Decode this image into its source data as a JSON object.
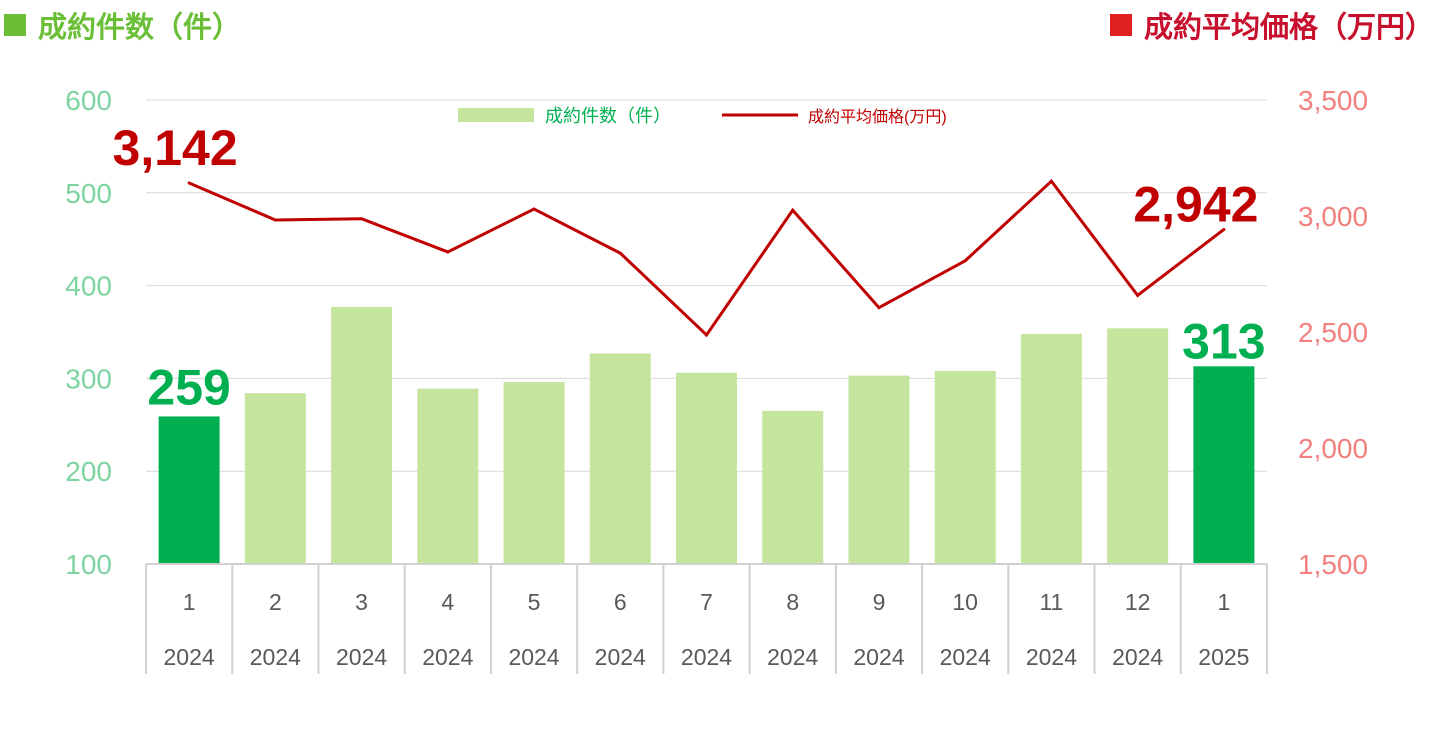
{
  "headers": {
    "left": "成約件数（件）",
    "right": "成約平均価格（万円）",
    "left_color": "#6bbf36",
    "right_color": "#e02020"
  },
  "chart_data": {
    "type": "bar+line",
    "categories": [
      {
        "month": "1",
        "year": "2024"
      },
      {
        "month": "2",
        "year": "2024"
      },
      {
        "month": "3",
        "year": "2024"
      },
      {
        "month": "4",
        "year": "2024"
      },
      {
        "month": "5",
        "year": "2024"
      },
      {
        "month": "6",
        "year": "2024"
      },
      {
        "month": "7",
        "year": "2024"
      },
      {
        "month": "8",
        "year": "2024"
      },
      {
        "month": "9",
        "year": "2024"
      },
      {
        "month": "10",
        "year": "2024"
      },
      {
        "month": "11",
        "year": "2024"
      },
      {
        "month": "12",
        "year": "2024"
      },
      {
        "month": "1",
        "year": "2025"
      }
    ],
    "series": [
      {
        "name": "成約件数（件）",
        "type": "bar",
        "axis": "left",
        "values": [
          259,
          284,
          377,
          289,
          296,
          327,
          306,
          265,
          303,
          308,
          348,
          354,
          313
        ],
        "color": "#c5e49e",
        "highlight_color": "#00b050",
        "highlight_indices": [
          0,
          12
        ]
      },
      {
        "name": "成約平均価格(万円)",
        "type": "line",
        "axis": "right",
        "values": [
          3142,
          2983,
          2988,
          2845,
          3030,
          2840,
          2487,
          3025,
          2605,
          2807,
          3150,
          2658,
          2942
        ],
        "color": "#c00000"
      }
    ],
    "left_axis": {
      "min": 100,
      "max": 600,
      "ticks": [
        "100",
        "200",
        "300",
        "400",
        "500",
        "600"
      ],
      "color": "#7ed4a0"
    },
    "right_axis": {
      "min": 1500,
      "max": 3500,
      "ticks": [
        "1,500",
        "2,000",
        "2,500",
        "3,000",
        "3,500"
      ],
      "color": "#f47f7f"
    },
    "data_labels": [
      {
        "text": "259",
        "series": 0,
        "index": 0,
        "color": "#00b050"
      },
      {
        "text": "313",
        "series": 0,
        "index": 12,
        "color": "#00b050"
      },
      {
        "text": "3,142",
        "series": 1,
        "index": 0,
        "color": "#c00000"
      },
      {
        "text": "2,942",
        "series": 1,
        "index": 12,
        "color": "#c00000"
      }
    ],
    "legend": {
      "position": "top-center"
    },
    "grid": true
  }
}
